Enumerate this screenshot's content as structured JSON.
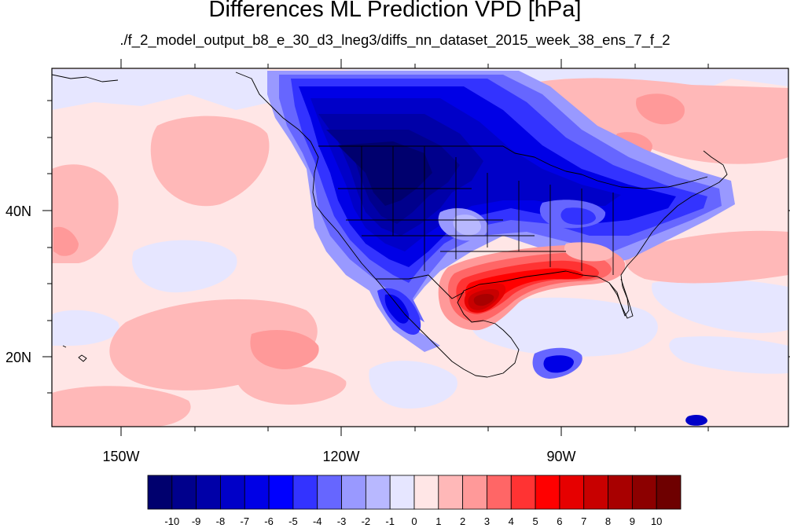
{
  "title": "Differences ML Prediction VPD [hPa]",
  "subtitle": "./f_2_model_output_b8_e_30_d3_lneg3/diffs_nn_dataset_2015_week_38_ens_7_f_2",
  "map": {
    "type": "filled-contour",
    "projection": "lat-lon",
    "lon_range": [
      -160,
      -62
    ],
    "lat_range": [
      10,
      59
    ],
    "lon_tick_labels": [
      "150W",
      "120W",
      "90W"
    ],
    "lat_tick_labels": [
      "40N",
      "20N"
    ]
  },
  "colorbar": {
    "labels": [
      "-10",
      "-9",
      "-8",
      "-7",
      "-6",
      "-5",
      "-4",
      "-3",
      "-2",
      "-1",
      "0",
      "1",
      "2",
      "3",
      "4",
      "5",
      "6",
      "7",
      "8",
      "9",
      "10"
    ],
    "colors": [
      "#00006e",
      "#00008c",
      "#0000a8",
      "#0000c8",
      "#0000e6",
      "#0000ff",
      "#3333ff",
      "#6666ff",
      "#9999ff",
      "#b8b8ff",
      "#e6e6ff",
      "#ffe6e6",
      "#ffb8b8",
      "#ff9999",
      "#ff6666",
      "#ff3333",
      "#ff0000",
      "#e60000",
      "#c80000",
      "#a80000",
      "#8c0000",
      "#6e0000"
    ]
  },
  "colors": {
    "neutral_positive": "#ffe6e6",
    "weak_positive": "#ffb8b8",
    "weak_negative": "#e6e6ff",
    "strong_negative": "#00008c",
    "strong_positive": "#c80000",
    "coastline": "#000000"
  }
}
